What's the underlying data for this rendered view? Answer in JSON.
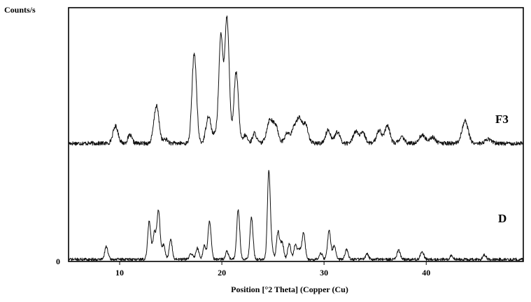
{
  "chart_data": {
    "type": "line",
    "ylabel": "Counts/s",
    "xlabel": "Position [°2 Theta] (Copper (Cu)",
    "xlim": [
      5,
      49.5
    ],
    "x_ticks": [
      10,
      20,
      30,
      40
    ],
    "y_tick_labels": [
      "0"
    ],
    "grid": false,
    "series": [
      {
        "name": "F3",
        "baseline": 0,
        "peaks": [
          {
            "x": 9.6,
            "h": 0.17,
            "w": 0.25
          },
          {
            "x": 11.0,
            "h": 0.08,
            "w": 0.2
          },
          {
            "x": 13.6,
            "h": 0.37,
            "w": 0.25
          },
          {
            "x": 14.5,
            "h": 0.04,
            "w": 0.2
          },
          {
            "x": 17.3,
            "h": 0.89,
            "w": 0.22
          },
          {
            "x": 18.7,
            "h": 0.27,
            "w": 0.25
          },
          {
            "x": 19.4,
            "h": 0.09,
            "w": 0.2
          },
          {
            "x": 19.9,
            "h": 1.04,
            "w": 0.2
          },
          {
            "x": 20.5,
            "h": 1.24,
            "w": 0.22
          },
          {
            "x": 21.4,
            "h": 0.7,
            "w": 0.22
          },
          {
            "x": 22.3,
            "h": 0.08,
            "w": 0.2
          },
          {
            "x": 23.2,
            "h": 0.1,
            "w": 0.2
          },
          {
            "x": 24.7,
            "h": 0.23,
            "w": 0.3
          },
          {
            "x": 25.3,
            "h": 0.15,
            "w": 0.25
          },
          {
            "x": 26.4,
            "h": 0.1,
            "w": 0.25
          },
          {
            "x": 27.1,
            "h": 0.15,
            "w": 0.25
          },
          {
            "x": 27.6,
            "h": 0.23,
            "w": 0.25
          },
          {
            "x": 28.2,
            "h": 0.18,
            "w": 0.25
          },
          {
            "x": 30.4,
            "h": 0.13,
            "w": 0.25
          },
          {
            "x": 31.3,
            "h": 0.11,
            "w": 0.25
          },
          {
            "x": 33.1,
            "h": 0.12,
            "w": 0.25
          },
          {
            "x": 33.8,
            "h": 0.1,
            "w": 0.25
          },
          {
            "x": 35.4,
            "h": 0.13,
            "w": 0.25
          },
          {
            "x": 36.2,
            "h": 0.17,
            "w": 0.25
          },
          {
            "x": 37.6,
            "h": 0.06,
            "w": 0.25
          },
          {
            "x": 39.6,
            "h": 0.08,
            "w": 0.3
          },
          {
            "x": 40.6,
            "h": 0.06,
            "w": 0.3
          },
          {
            "x": 43.8,
            "h": 0.22,
            "w": 0.3
          },
          {
            "x": 46.1,
            "h": 0.04,
            "w": 0.3
          }
        ]
      },
      {
        "name": "D",
        "baseline": 0,
        "peaks": [
          {
            "x": 8.7,
            "h": 0.17,
            "w": 0.15
          },
          {
            "x": 12.9,
            "h": 0.5,
            "w": 0.15
          },
          {
            "x": 13.4,
            "h": 0.35,
            "w": 0.15
          },
          {
            "x": 13.8,
            "h": 0.64,
            "w": 0.15
          },
          {
            "x": 14.3,
            "h": 0.19,
            "w": 0.15
          },
          {
            "x": 15.0,
            "h": 0.25,
            "w": 0.15
          },
          {
            "x": 17.0,
            "h": 0.08,
            "w": 0.15
          },
          {
            "x": 17.6,
            "h": 0.15,
            "w": 0.15
          },
          {
            "x": 18.3,
            "h": 0.18,
            "w": 0.15
          },
          {
            "x": 18.8,
            "h": 0.5,
            "w": 0.15
          },
          {
            "x": 20.5,
            "h": 0.1,
            "w": 0.15
          },
          {
            "x": 21.6,
            "h": 0.64,
            "w": 0.15
          },
          {
            "x": 22.9,
            "h": 0.54,
            "w": 0.15
          },
          {
            "x": 24.6,
            "h": 1.15,
            "w": 0.14
          },
          {
            "x": 24.9,
            "h": 0.12,
            "w": 0.15
          },
          {
            "x": 25.5,
            "h": 0.36,
            "w": 0.15
          },
          {
            "x": 25.9,
            "h": 0.22,
            "w": 0.15
          },
          {
            "x": 26.6,
            "h": 0.21,
            "w": 0.15
          },
          {
            "x": 27.2,
            "h": 0.2,
            "w": 0.15
          },
          {
            "x": 27.6,
            "h": 0.13,
            "w": 0.15
          },
          {
            "x": 28.0,
            "h": 0.34,
            "w": 0.15
          },
          {
            "x": 29.7,
            "h": 0.08,
            "w": 0.15
          },
          {
            "x": 30.5,
            "h": 0.38,
            "w": 0.15
          },
          {
            "x": 31.0,
            "h": 0.18,
            "w": 0.15
          },
          {
            "x": 32.2,
            "h": 0.13,
            "w": 0.15
          },
          {
            "x": 34.2,
            "h": 0.07,
            "w": 0.15
          },
          {
            "x": 37.3,
            "h": 0.12,
            "w": 0.15
          },
          {
            "x": 39.6,
            "h": 0.11,
            "w": 0.15
          },
          {
            "x": 42.5,
            "h": 0.05,
            "w": 0.15
          },
          {
            "x": 45.7,
            "h": 0.06,
            "w": 0.15
          }
        ]
      }
    ]
  }
}
